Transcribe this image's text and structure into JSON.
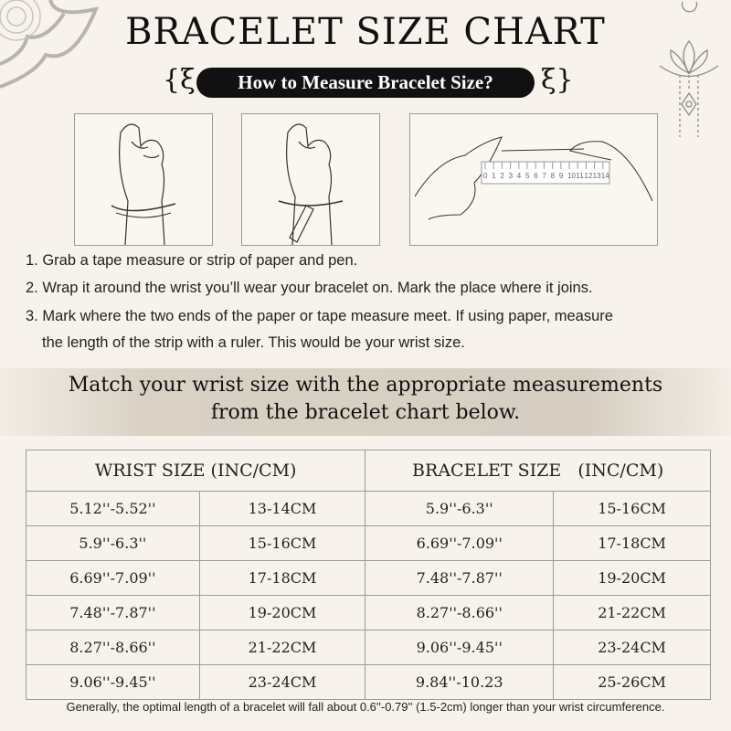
{
  "header": {
    "title": "BRACELET SIZE CHART",
    "subtitle": "How to Measure Bracelet Size?"
  },
  "illustrations": [
    {
      "icon": "hand-wrap-tape-icon"
    },
    {
      "icon": "hand-mark-pen-icon"
    },
    {
      "icon": "hands-ruler-icon",
      "ruler_numbers": [
        "0",
        "1",
        "2",
        "3",
        "4",
        "5",
        "6",
        "7",
        "8",
        "9",
        "10",
        "11",
        "12",
        "13",
        "14"
      ]
    }
  ],
  "steps": [
    "1. Grab a tape measure or strip of paper and pen.",
    "2. Wrap it around the wrist you’ll wear your bracelet on. Mark the place where it joins.",
    "3. Mark where the two ends of the paper or tape measure meet. If using paper, measure",
    "the length of the strip with a ruler. This would be your wrist size."
  ],
  "instruction": {
    "line1": "Match your wrist size with the appropriate measurements",
    "line2": "from the bracelet chart below."
  },
  "table": {
    "headers": [
      "WRIST SIZE (INC/CM)",
      "BRACELET SIZE   (INC/CM)"
    ],
    "rows": [
      [
        "5.12''-5.52''",
        "13-14CM",
        "5.9''-6.3''",
        "15-16CM"
      ],
      [
        "5.9''-6.3''",
        "15-16CM",
        "6.69''-7.09''",
        "17-18CM"
      ],
      [
        "6.69''-7.09''",
        "17-18CM",
        "7.48''-7.87''",
        "19-20CM"
      ],
      [
        "7.48''-7.87''",
        "19-20CM",
        "8.27''-8.66''",
        "21-22CM"
      ],
      [
        "8.27''-8.66''",
        "21-22CM",
        "9.06''-9.45''",
        "23-24CM"
      ],
      [
        "9.06''-9.45''",
        "23-24CM",
        "9.84''-10.23",
        "25-26CM"
      ]
    ]
  },
  "footnote": "Generally, the optimal length of a bracelet will fall about 0.6''-0.79'' (1.5-2cm) longer than your wrist circumference.",
  "colors": {
    "background": "#f7f3ec",
    "pill": "#111111",
    "band": "#d6cec1",
    "ornament": "#b8b3ad"
  }
}
